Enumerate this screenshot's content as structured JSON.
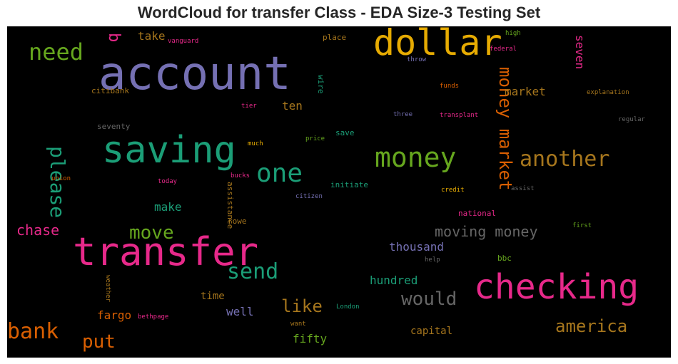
{
  "title": "WordCloud for transfer Class - EDA Size-3 Testing Set",
  "palette": {
    "purple": "#7570b3",
    "pink": "#e7298a",
    "green": "#1b9e77",
    "orange": "#d95f02",
    "olive": "#66a61e",
    "gold": "#e6ab02",
    "brown": "#a6761d",
    "gray": "#666666",
    "background": "#000000"
  },
  "words": [
    {
      "text": "account",
      "color": "#7570b3",
      "orientation": "horizontal"
    },
    {
      "text": "dollar",
      "color": "#e6ab02",
      "orientation": "horizontal"
    },
    {
      "text": "transfer",
      "color": "#e7298a",
      "orientation": "horizontal"
    },
    {
      "text": "saving",
      "color": "#1b9e77",
      "orientation": "horizontal"
    },
    {
      "text": "checking",
      "color": "#e7298a",
      "orientation": "horizontal"
    },
    {
      "text": "money",
      "color": "#66a61e",
      "orientation": "horizontal"
    },
    {
      "text": "need",
      "color": "#66a61e",
      "orientation": "horizontal"
    },
    {
      "text": "one",
      "color": "#1b9e77",
      "orientation": "horizontal"
    },
    {
      "text": "money market",
      "color": "#d95f02",
      "orientation": "vertical"
    },
    {
      "text": "another",
      "color": "#a6761d",
      "orientation": "horizontal"
    },
    {
      "text": "please",
      "color": "#1b9e77",
      "orientation": "vertical"
    },
    {
      "text": "send",
      "color": "#1b9e77",
      "orientation": "horizontal"
    },
    {
      "text": "move",
      "color": "#66a61e",
      "orientation": "horizontal"
    },
    {
      "text": "bank",
      "color": "#d95f02",
      "orientation": "horizontal"
    },
    {
      "text": "would",
      "color": "#666666",
      "orientation": "horizontal"
    },
    {
      "text": "america",
      "color": "#a6761d",
      "orientation": "horizontal"
    },
    {
      "text": "put",
      "color": "#d95f02",
      "orientation": "horizontal"
    },
    {
      "text": "moving money",
      "color": "#666666",
      "orientation": "horizontal"
    },
    {
      "text": "like",
      "color": "#a6761d",
      "orientation": "horizontal"
    },
    {
      "text": "chase",
      "color": "#e7298a",
      "orientation": "horizontal"
    },
    {
      "text": "b",
      "color": "#e7298a",
      "orientation": "vertical"
    },
    {
      "text": "market",
      "color": "#a6761d",
      "orientation": "horizontal"
    },
    {
      "text": "thousand",
      "color": "#7570b3",
      "orientation": "horizontal"
    },
    {
      "text": "hundred",
      "color": "#1b9e77",
      "orientation": "horizontal"
    },
    {
      "text": "ten",
      "color": "#a6761d",
      "orientation": "horizontal"
    },
    {
      "text": "make",
      "color": "#1b9e77",
      "orientation": "horizontal"
    },
    {
      "text": "take",
      "color": "#a6761d",
      "orientation": "horizontal"
    },
    {
      "text": "fargo",
      "color": "#d95f02",
      "orientation": "horizontal"
    },
    {
      "text": "well",
      "color": "#7570b3",
      "orientation": "horizontal"
    },
    {
      "text": "fifty",
      "color": "#66a61e",
      "orientation": "horizontal"
    },
    {
      "text": "capital",
      "color": "#a6761d",
      "orientation": "horizontal"
    },
    {
      "text": "seven",
      "color": "#e7298a",
      "orientation": "vertical"
    },
    {
      "text": "time",
      "color": "#a6761d",
      "orientation": "horizontal"
    },
    {
      "text": "seventy",
      "color": "#666666",
      "orientation": "horizontal"
    },
    {
      "text": "citibank",
      "color": "#a6761d",
      "orientation": "horizontal"
    },
    {
      "text": "place",
      "color": "#a6761d",
      "orientation": "horizontal"
    },
    {
      "text": "vanguard",
      "color": "#e7298a",
      "orientation": "horizontal"
    },
    {
      "text": "high",
      "color": "#66a61e",
      "orientation": "horizontal"
    },
    {
      "text": "federal",
      "color": "#e7298a",
      "orientation": "horizontal"
    },
    {
      "text": "throw",
      "color": "#7570b3",
      "orientation": "horizontal"
    },
    {
      "text": "wire",
      "color": "#1b9e77",
      "orientation": "vertical"
    },
    {
      "text": "funds",
      "color": "#d95f02",
      "orientation": "horizontal"
    },
    {
      "text": "explanation",
      "color": "#a6761d",
      "orientation": "horizontal"
    },
    {
      "text": "tier",
      "color": "#e7298a",
      "orientation": "horizontal"
    },
    {
      "text": "three",
      "color": "#7570b3",
      "orientation": "horizontal"
    },
    {
      "text": "transplant",
      "color": "#e7298a",
      "orientation": "horizontal"
    },
    {
      "text": "save",
      "color": "#1b9e77",
      "orientation": "horizontal"
    },
    {
      "text": "much",
      "color": "#e6ab02",
      "orientation": "horizontal"
    },
    {
      "text": "price",
      "color": "#66a61e",
      "orientation": "horizontal"
    },
    {
      "text": "regular",
      "color": "#666666",
      "orientation": "horizontal"
    },
    {
      "text": "union",
      "color": "#d95f02",
      "orientation": "horizontal"
    },
    {
      "text": "today",
      "color": "#e7298a",
      "orientation": "horizontal"
    },
    {
      "text": "bucks",
      "color": "#e7298a",
      "orientation": "horizontal"
    },
    {
      "text": "assistance",
      "color": "#a6761d",
      "orientation": "vertical"
    },
    {
      "text": "initiate",
      "color": "#1b9e77",
      "orientation": "horizontal"
    },
    {
      "text": "citizen",
      "color": "#7570b3",
      "orientation": "horizontal"
    },
    {
      "text": "credit",
      "color": "#e6ab02",
      "orientation": "horizontal"
    },
    {
      "text": "assist",
      "color": "#666666",
      "orientation": "horizontal"
    },
    {
      "text": "national",
      "color": "#e7298a",
      "orientation": "horizontal"
    },
    {
      "text": "rowe",
      "color": "#a6761d",
      "orientation": "horizontal"
    },
    {
      "text": "first",
      "color": "#66a61e",
      "orientation": "horizontal"
    },
    {
      "text": "help",
      "color": "#666666",
      "orientation": "horizontal"
    },
    {
      "text": "bbc",
      "color": "#66a61e",
      "orientation": "horizontal"
    },
    {
      "text": "weather",
      "color": "#a6761d",
      "orientation": "vertical"
    },
    {
      "text": "bethpage",
      "color": "#e7298a",
      "orientation": "horizontal"
    },
    {
      "text": "London",
      "color": "#1b9e77",
      "orientation": "horizontal"
    },
    {
      "text": "want",
      "color": "#a6761d",
      "orientation": "horizontal"
    }
  ]
}
